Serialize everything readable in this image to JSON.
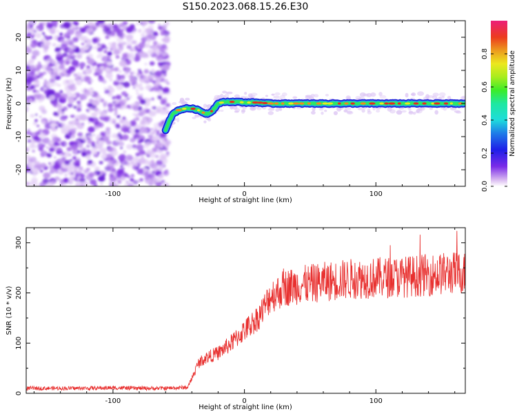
{
  "title": "S150.2023.068.15.26.E30",
  "chart_data": [
    {
      "type": "heatmap",
      "xlabel": "Height of straight line (km)",
      "ylabel": "Frequency (Hz)",
      "xlim": [
        -166,
        168
      ],
      "ylim": [
        -25,
        25
      ],
      "xticks": [
        -100,
        0,
        100
      ],
      "yticks": [
        -20,
        -10,
        0,
        10,
        20
      ],
      "grid": false,
      "noise_region_x": [
        -166,
        -58
      ],
      "ridge": {
        "x": [
          -60,
          -57,
          -54,
          -50,
          -45,
          -40,
          -35,
          -30,
          -27,
          -24,
          -20,
          -15,
          -10,
          -5,
          0,
          10,
          20,
          40,
          60,
          80,
          100,
          120,
          140,
          168
        ],
        "y": [
          -8,
          -5,
          -3,
          -2,
          -1.5,
          -1.5,
          -2,
          -3,
          -3,
          -2,
          0,
          0.5,
          0.5,
          0.5,
          0.3,
          0.3,
          0,
          0,
          0,
          0,
          0,
          0,
          0,
          0
        ]
      },
      "colorbar": {
        "label": "Normalized spectral amplitude",
        "range": [
          0,
          1
        ],
        "ticks": [
          "0.0",
          "0.2",
          "0.4",
          "0.6",
          "0.8"
        ]
      }
    },
    {
      "type": "line",
      "xlabel": "Height of straight line (km)",
      "ylabel": "SNR (10 * v/v)",
      "xlim": [
        -166,
        168
      ],
      "ylim": [
        0,
        330
      ],
      "xticks": [
        -100,
        0,
        100
      ],
      "yticks": [
        0,
        100,
        200,
        300
      ],
      "grid": false,
      "color": "#e8302f",
      "series": [
        {
          "x": [
            -166,
            -140,
            -120,
            -100,
            -80,
            -60,
            -50,
            -43,
            -40,
            -35,
            -30,
            -20,
            -10,
            0,
            10,
            15,
            20,
            25,
            30,
            40,
            50,
            60,
            80,
            100,
            120,
            140,
            160,
            168
          ],
          "values": [
            10,
            10,
            10,
            11,
            10,
            10,
            11,
            12,
            30,
            60,
            70,
            80,
            100,
            125,
            150,
            170,
            195,
            200,
            210,
            215,
            218,
            222,
            228,
            230,
            232,
            236,
            240,
            240
          ]
        }
      ]
    }
  ]
}
